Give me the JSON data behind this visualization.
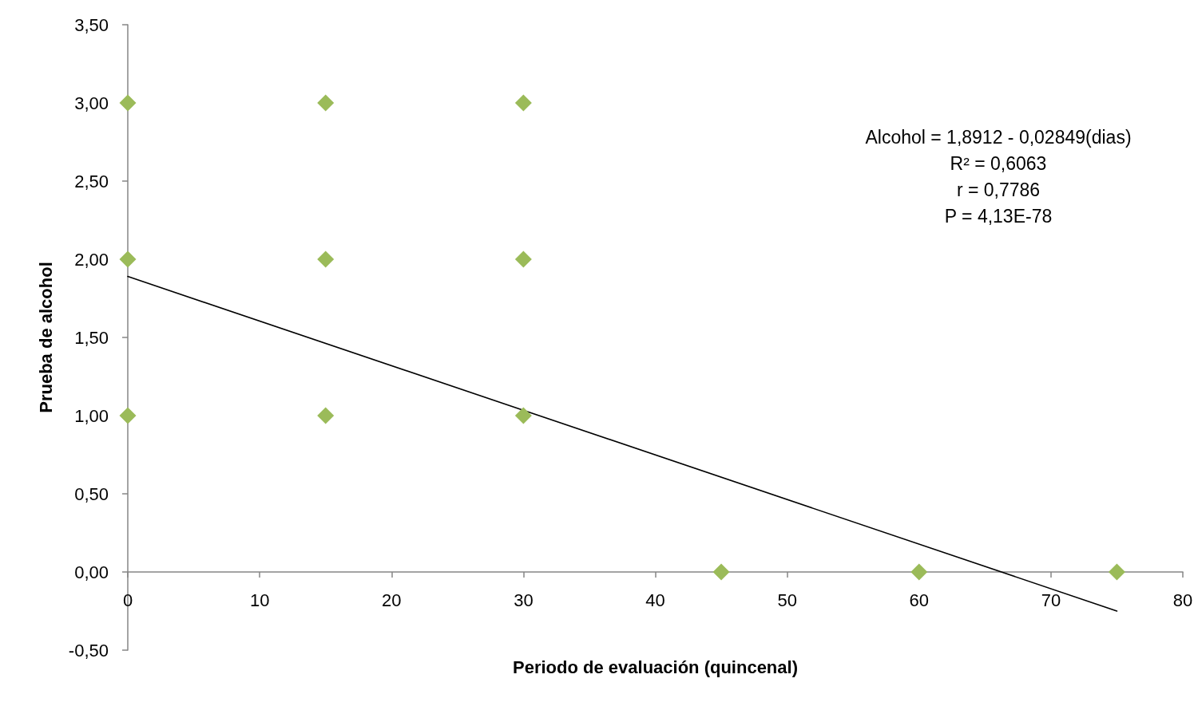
{
  "chart_data": {
    "type": "scatter",
    "xlabel": "Periodo de evaluación (quincenal)",
    "ylabel": "Prueba de alcohol",
    "annotations": [
      "Alcohol = 1,8912 - 0,02849(dias)",
      "R² = 0,6063",
      "r = 0,7786",
      "P = 4,13E-78"
    ],
    "series": [
      {
        "color": "#9bbb59",
        "x": [
          0,
          0,
          0,
          15,
          15,
          15,
          30,
          30,
          30,
          45,
          60,
          75
        ],
        "values": [
          3,
          2,
          1,
          3,
          2,
          1,
          3,
          2,
          1,
          0,
          0,
          0
        ]
      },
      {
        "type": "line",
        "color": "#000000",
        "x": [
          0,
          75
        ],
        "values": [
          1.89,
          -0.25
        ],
        "marker": "none"
      }
    ],
    "xlim": [
      0,
      80
    ],
    "xticks": [
      0,
      10,
      20,
      30,
      40,
      50,
      60,
      70,
      80
    ],
    "ylim": [
      -0.5,
      3.5
    ],
    "yticks": [
      {
        "value": -0.5,
        "label": "-0,50"
      },
      {
        "value": 0,
        "label": "0,00"
      },
      {
        "value": 0.5,
        "label": "0,50"
      },
      {
        "value": 1,
        "label": "1,00"
      },
      {
        "value": 1.5,
        "label": "1,50"
      },
      {
        "value": 2,
        "label": "2,00"
      },
      {
        "value": 2.5,
        "label": "2,50"
      },
      {
        "value": 3,
        "label": "3,00"
      },
      {
        "value": 3.5,
        "label": "3,50"
      }
    ],
    "marker": "diamond"
  }
}
